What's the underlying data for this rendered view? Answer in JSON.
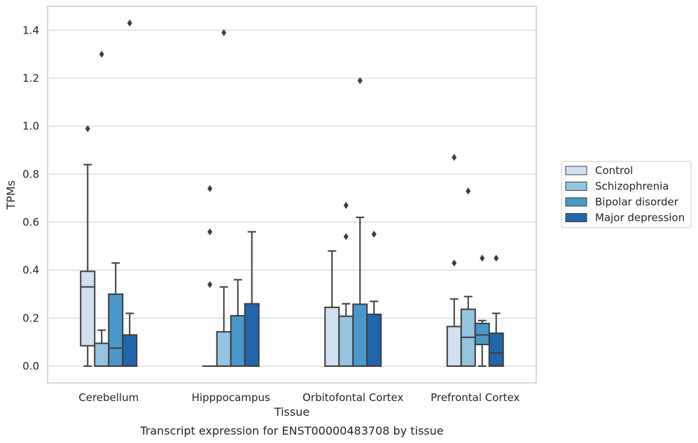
{
  "chart_data": {
    "type": "box",
    "title": "",
    "caption": "Transcript expression for ENST00000483708 by tissue",
    "xlabel": "Tissue",
    "ylabel": "TPMs",
    "ylim": [
      -0.07,
      1.5
    ],
    "yticks": [
      0.0,
      0.2,
      0.4,
      0.6,
      0.8,
      1.0,
      1.2,
      1.4
    ],
    "ytick_labels": [
      "0.0",
      "0.2",
      "0.4",
      "0.6",
      "0.8",
      "1.0",
      "1.2",
      "1.4"
    ],
    "grid": "horizontal",
    "legend_position": "right",
    "categories": [
      "Cerebellum",
      "Hipppocampus",
      "Orbitofontal Cortex",
      "Prefrontal Cortex"
    ],
    "series": [
      {
        "name": "Control",
        "color": "#d0e1f2",
        "boxes": [
          {
            "whislo": 0.0,
            "q1": 0.085,
            "med": 0.33,
            "q3": 0.395,
            "whishi": 0.84,
            "fliers": [
              0.99
            ]
          },
          {
            "whislo": 0.0,
            "q1": 0.0,
            "med": 0.0,
            "q3": 0.0,
            "whishi": 0.0,
            "fliers": [
              0.34,
              0.56,
              0.74
            ]
          },
          {
            "whislo": 0.0,
            "q1": 0.0,
            "med": 0.0,
            "q3": 0.245,
            "whishi": 0.48,
            "fliers": []
          },
          {
            "whislo": 0.0,
            "q1": 0.0,
            "med": 0.0,
            "q3": 0.165,
            "whishi": 0.28,
            "fliers": [
              0.43,
              0.87
            ]
          }
        ]
      },
      {
        "name": "Schizophrenia",
        "color": "#94c4df",
        "boxes": [
          {
            "whislo": 0.0,
            "q1": 0.0,
            "med": 0.0,
            "q3": 0.095,
            "whishi": 0.15,
            "fliers": [
              1.3
            ]
          },
          {
            "whislo": 0.0,
            "q1": 0.0,
            "med": 0.0,
            "q3": 0.143,
            "whishi": 0.33,
            "fliers": [
              1.39
            ]
          },
          {
            "whislo": 0.0,
            "q1": 0.0,
            "med": 0.0,
            "q3": 0.208,
            "whishi": 0.26,
            "fliers": [
              0.54,
              0.67
            ]
          },
          {
            "whislo": 0.0,
            "q1": 0.0,
            "med": 0.12,
            "q3": 0.237,
            "whishi": 0.29,
            "fliers": [
              0.73
            ]
          }
        ]
      },
      {
        "name": "Bipolar disorder",
        "color": "#4a98c9",
        "boxes": [
          {
            "whislo": 0.0,
            "q1": 0.0,
            "med": 0.075,
            "q3": 0.3,
            "whishi": 0.43,
            "fliers": []
          },
          {
            "whislo": 0.0,
            "q1": 0.0,
            "med": 0.0,
            "q3": 0.21,
            "whishi": 0.36,
            "fliers": []
          },
          {
            "whislo": 0.0,
            "q1": 0.0,
            "med": 0.0,
            "q3": 0.258,
            "whishi": 0.62,
            "fliers": [
              1.19
            ]
          },
          {
            "whislo": 0.0,
            "q1": 0.09,
            "med": 0.13,
            "q3": 0.178,
            "whishi": 0.19,
            "fliers": [
              0.45
            ]
          }
        ]
      },
      {
        "name": "Major depression",
        "color": "#2166ac",
        "boxes": [
          {
            "whislo": 0.0,
            "q1": 0.0,
            "med": 0.0,
            "q3": 0.13,
            "whishi": 0.22,
            "fliers": [
              1.43
            ]
          },
          {
            "whislo": 0.0,
            "q1": 0.0,
            "med": 0.0,
            "q3": 0.26,
            "whishi": 0.56,
            "fliers": []
          },
          {
            "whislo": 0.0,
            "q1": 0.0,
            "med": 0.0,
            "q3": 0.216,
            "whishi": 0.27,
            "fliers": [
              0.55
            ]
          },
          {
            "whislo": 0.0,
            "q1": 0.0,
            "med": 0.055,
            "q3": 0.137,
            "whishi": 0.22,
            "fliers": [
              0.45
            ]
          }
        ]
      }
    ]
  }
}
